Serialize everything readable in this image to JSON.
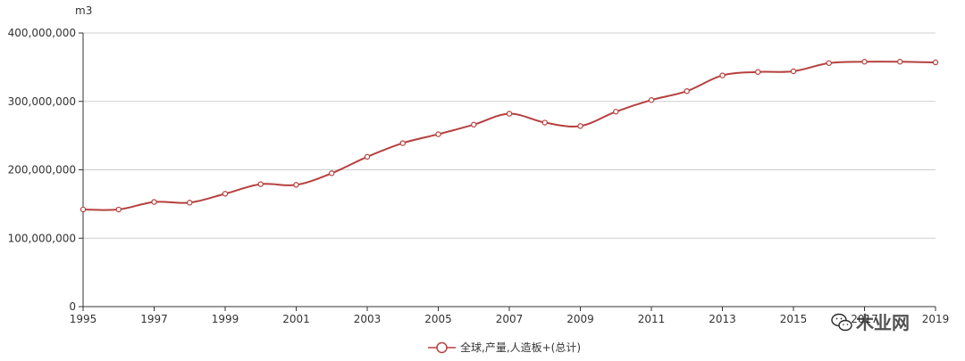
{
  "chart_data": {
    "type": "line",
    "x": [
      "1995",
      "1996",
      "1997",
      "1998",
      "1999",
      "2000",
      "2001",
      "2002",
      "2003",
      "2004",
      "2005",
      "2006",
      "2007",
      "2008",
      "2009",
      "2010",
      "2011",
      "2012",
      "2013",
      "2014",
      "2015",
      "2016",
      "2017",
      "2018",
      "2019"
    ],
    "x_tick_labels": [
      "1995",
      "1997",
      "1999",
      "2001",
      "2003",
      "2005",
      "2007",
      "2009",
      "2011",
      "2013",
      "2015",
      "2017",
      "2019"
    ],
    "series": [
      {
        "name": "全球,产量,人造板+(总计)",
        "values": [
          142000000,
          142000000,
          153000000,
          152000000,
          165000000,
          179000000,
          178000000,
          195000000,
          219000000,
          239000000,
          252000000,
          266000000,
          282000000,
          269000000,
          264000000,
          285000000,
          302000000,
          315000000,
          338000000,
          343000000,
          344000000,
          356000000,
          358000000,
          358000000,
          357000000
        ]
      }
    ],
    "y_unit": "m3",
    "ylim": [
      0,
      400000000
    ],
    "y_ticks": [
      {
        "value": 0,
        "label": "0"
      },
      {
        "value": 100000000,
        "label": "100,000,000"
      },
      {
        "value": 200000000,
        "label": "200,000,000"
      },
      {
        "value": 300000000,
        "label": "300,000,000"
      },
      {
        "value": 400000000,
        "label": "400,000,000"
      }
    ],
    "grid": true,
    "legend_position": "bottom-center",
    "line_color": "#b5403e",
    "marker_fill": "#ffffff"
  },
  "watermark": {
    "text": "木业网"
  }
}
